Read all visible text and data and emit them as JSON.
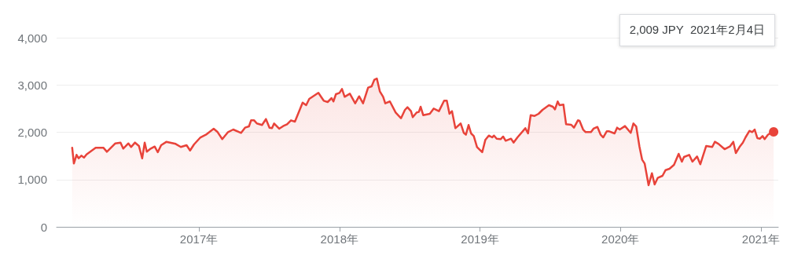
{
  "chart_data": {
    "type": "area",
    "color": "#e8433a",
    "x": [
      2016.098,
      2016.11,
      2016.129,
      2016.144,
      2016.163,
      2016.182,
      2016.2,
      2016.265,
      2016.321,
      2016.345,
      2016.405,
      2016.442,
      2016.461,
      2016.498,
      2016.517,
      2016.545,
      2016.573,
      2016.596,
      2016.614,
      2016.629,
      2016.657,
      2016.685,
      2016.707,
      2016.731,
      2016.769,
      2016.834,
      2016.871,
      2016.912,
      2016.937,
      2016.965,
      2017.011,
      2017.049,
      2017.105,
      2017.133,
      2017.166,
      2017.207,
      2017.244,
      2017.3,
      2017.328,
      2017.356,
      2017.371,
      2017.393,
      2017.412,
      2017.449,
      2017.477,
      2017.502,
      2017.52,
      2017.535,
      2017.571,
      2017.599,
      2017.627,
      2017.655,
      2017.683,
      2017.738,
      2017.763,
      2017.785,
      2017.85,
      2017.888,
      2017.916,
      2017.944,
      2017.957,
      2017.975,
      2018.0,
      2018.018,
      2018.037,
      2018.074,
      2018.112,
      2018.14,
      2018.168,
      2018.204,
      2018.229,
      2018.248,
      2018.266,
      2018.288,
      2018.311,
      2018.326,
      2018.359,
      2018.4,
      2018.438,
      2018.466,
      2018.484,
      2018.509,
      2018.522,
      2018.55,
      2018.565,
      2018.578,
      2018.596,
      2018.643,
      2018.671,
      2018.708,
      2018.745,
      2018.764,
      2018.783,
      2018.801,
      2018.825,
      2018.863,
      2018.885,
      2018.9,
      2018.919,
      2018.937,
      2018.956,
      2018.979,
      2019.016,
      2019.038,
      2019.063,
      2019.087,
      2019.1,
      2019.119,
      2019.147,
      2019.165,
      2019.183,
      2019.221,
      2019.239,
      2019.267,
      2019.323,
      2019.342,
      2019.361,
      2019.389,
      2019.417,
      2019.445,
      2019.491,
      2019.519,
      2019.534,
      2019.553,
      2019.566,
      2019.594,
      2019.613,
      2019.65,
      2019.669,
      2019.697,
      2019.709,
      2019.734,
      2019.752,
      2019.79,
      2019.808,
      2019.836,
      2019.859,
      2019.877,
      2019.902,
      2019.92,
      2019.958,
      2019.976,
      2019.995,
      2020.032,
      2020.073,
      2020.092,
      2020.112,
      2020.135,
      2020.154,
      2020.172,
      2020.2,
      2020.224,
      2020.243,
      2020.265,
      2020.299,
      2020.321,
      2020.349,
      2020.381,
      2020.414,
      2020.437,
      2020.452,
      2020.489,
      2020.512,
      2020.545,
      2020.568,
      2020.61,
      2020.653,
      2020.672,
      2020.698,
      2020.741,
      2020.778,
      2020.803,
      2020.821,
      2020.847,
      2020.871,
      2020.89,
      2020.918,
      2020.937,
      2020.955,
      2020.974,
      2020.993,
      2021.011,
      2021.026,
      2021.049,
      2021.063,
      2021.09
    ],
    "values": [
      1671,
      1339,
      1522,
      1449,
      1505,
      1466,
      1532,
      1671,
      1671,
      1588,
      1764,
      1781,
      1654,
      1764,
      1688,
      1781,
      1710,
      1449,
      1781,
      1588,
      1654,
      1698,
      1577,
      1726,
      1798,
      1754,
      1688,
      1726,
      1615,
      1743,
      1892,
      1947,
      2075,
      2003,
      1854,
      2003,
      2058,
      1987,
      2097,
      2124,
      2252,
      2252,
      2186,
      2153,
      2279,
      2097,
      2086,
      2186,
      2075,
      2130,
      2169,
      2252,
      2224,
      2627,
      2573,
      2705,
      2833,
      2667,
      2639,
      2722,
      2651,
      2805,
      2833,
      2916,
      2750,
      2816,
      2611,
      2760,
      2611,
      2943,
      2971,
      3109,
      3137,
      2860,
      2750,
      2611,
      2651,
      2418,
      2296,
      2473,
      2529,
      2446,
      2319,
      2418,
      2429,
      2539,
      2362,
      2390,
      2501,
      2446,
      2667,
      2667,
      2390,
      2446,
      2086,
      2186,
      1987,
      1947,
      2153,
      1975,
      1920,
      1688,
      1577,
      1837,
      1930,
      1892,
      1930,
      1864,
      1854,
      1909,
      1820,
      1864,
      1781,
      1892,
      2086,
      1975,
      2362,
      2346,
      2390,
      2473,
      2573,
      2539,
      2484,
      2651,
      2573,
      2584,
      2169,
      2158,
      2097,
      2252,
      2241,
      2058,
      2003,
      2003,
      2075,
      2113,
      1947,
      1892,
      2020,
      2020,
      1975,
      2097,
      2058,
      2130,
      1987,
      2186,
      2124,
      1698,
      1422,
      1339,
      880,
      1134,
      896,
      1034,
      1079,
      1200,
      1228,
      1311,
      1544,
      1378,
      1477,
      1522,
      1378,
      1488,
      1323,
      1710,
      1688,
      1798,
      1754,
      1643,
      1698,
      1798,
      1560,
      1688,
      1781,
      1892,
      2030,
      2003,
      2058,
      1876,
      1864,
      1920,
      1854,
      1947,
      1975,
      2009
    ],
    "xlim": [
      2015.987,
      2021.123
    ],
    "xticks": [
      {
        "value": 2017,
        "label": "2017年"
      },
      {
        "value": 2018,
        "label": "2018年"
      },
      {
        "value": 2019,
        "label": "2019年"
      },
      {
        "value": 2020,
        "label": "2020年"
      },
      {
        "value": 2021,
        "label": "2021年"
      }
    ],
    "ylim": [
      0,
      4000
    ],
    "yticks": [
      0,
      {
        "value": 1000,
        "label": "1,000"
      },
      {
        "value": 2000,
        "label": "2,000"
      },
      {
        "value": 3000,
        "label": "3,000"
      },
      {
        "value": 4000,
        "label": "4,000"
      }
    ],
    "grid": "y",
    "marker": "none",
    "line_style": "solid",
    "annotations": [
      "2,009 JPY  2021年2月4日"
    ]
  }
}
